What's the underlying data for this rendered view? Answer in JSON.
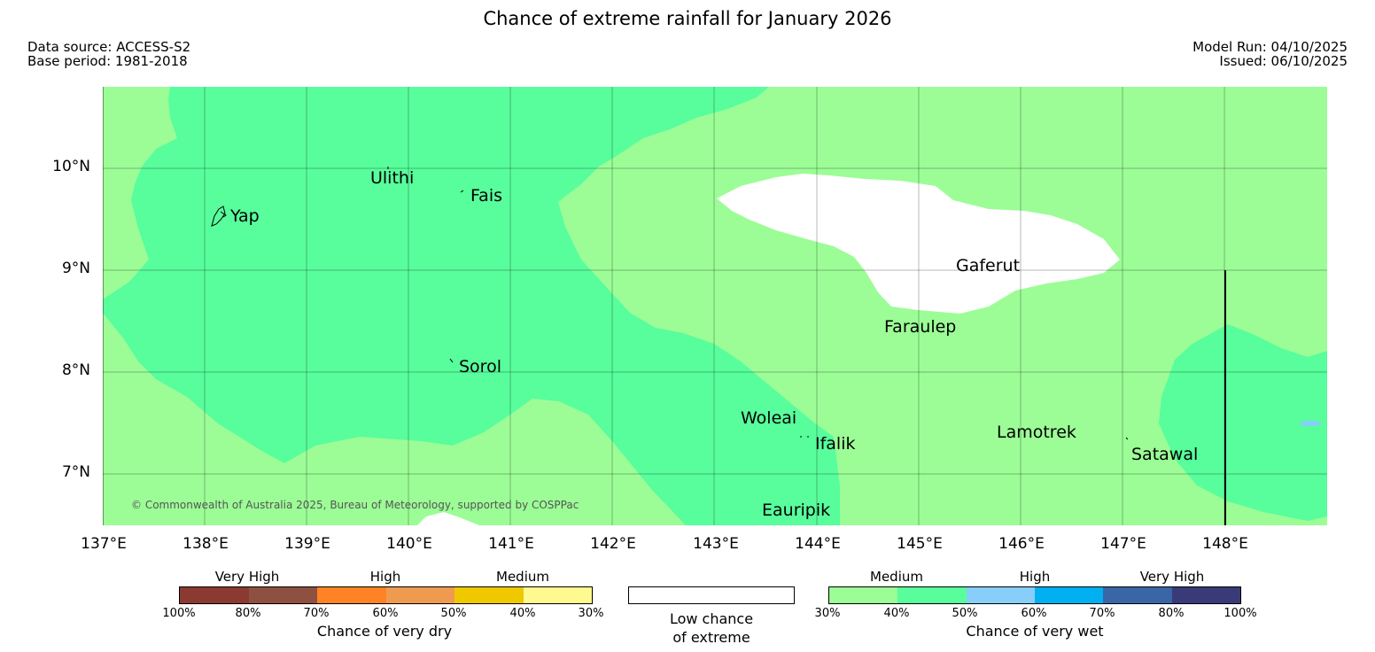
{
  "header": {
    "title": "Chance of extreme rainfall for January 2026",
    "data_source": "Data source: ACCESS-S2",
    "base_period": "Base period: 1981-2018",
    "model_run": "Model Run: 04/10/2025",
    "issued": "Issued: 06/10/2025"
  },
  "map": {
    "lat_labels": [
      "10°N",
      "9°N",
      "8°N",
      "7°N"
    ],
    "lon_labels": [
      "137°E",
      "138°E",
      "139°E",
      "140°E",
      "141°E",
      "142°E",
      "143°E",
      "144°E",
      "145°E",
      "146°E",
      "147°E",
      "148°E"
    ],
    "places": [
      "Ulithi",
      "Fais",
      "Yap",
      "Gaferut",
      "Faraulep",
      "Sorol",
      "Woleai",
      "Ifalik",
      "Lamotrek",
      "Satawal",
      "Eauripik"
    ],
    "copyright": "© Commonwealth of Australia 2025, Bureau of Meteorology, supported by COSPPac",
    "colors": {
      "medium_wet": "#9cfd96",
      "high_wet": "#58fd9c",
      "low": "#ffffff",
      "very_wet": "#87cefa"
    }
  },
  "legend": {
    "dry": {
      "categories": [
        "Very High",
        "High",
        "Medium"
      ],
      "ticks": [
        "100%",
        "80%",
        "70%",
        "60%",
        "50%",
        "40%",
        "30%"
      ],
      "colors": [
        "#8b3a32",
        "#8e5040",
        "#ff8224",
        "#ee9b50",
        "#f0c800",
        "#fffa90"
      ],
      "title": "Chance of very dry"
    },
    "low": {
      "line1": "Low chance",
      "line2": "of extreme",
      "color": "#ffffff"
    },
    "wet": {
      "categories": [
        "Medium",
        "High",
        "Very High"
      ],
      "ticks": [
        "30%",
        "40%",
        "50%",
        "60%",
        "70%",
        "80%",
        "100%"
      ],
      "colors": [
        "#9cfd96",
        "#58fd9c",
        "#87cefa",
        "#00b0f0",
        "#3a66a8",
        "#3a3a78"
      ],
      "title": "Chance of very wet"
    }
  }
}
